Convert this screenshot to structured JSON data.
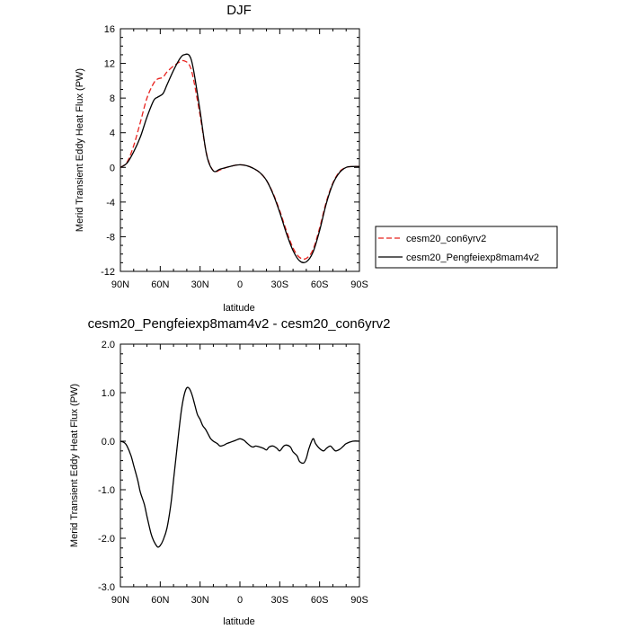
{
  "chart_data": [
    {
      "type": "line",
      "title": "DJF",
      "xlabel": "latitude",
      "ylabel": "Merid Transient Eddy Heat Flux (PW)",
      "xlim": [
        90,
        -90
      ],
      "ylim": [
        -12,
        16
      ],
      "xticks": [
        90,
        60,
        30,
        0,
        -30,
        -60,
        -90
      ],
      "xtick_labels": [
        "90N",
        "60N",
        "30N",
        "0",
        "30S",
        "60S",
        "90S"
      ],
      "yticks": [
        -12,
        -8,
        -4,
        0,
        4,
        8,
        12,
        16
      ],
      "ytick_labels": [
        "-12",
        "-8",
        "-4",
        "0",
        "4",
        "8",
        "12",
        "16"
      ],
      "legend": "right",
      "grid": false,
      "series": [
        {
          "name": "cesm20_con6yrv2",
          "color": "#e8231f",
          "dash": "dashed",
          "x": [
            90,
            85,
            80,
            75,
            70,
            65,
            62,
            58,
            55,
            50,
            45,
            42,
            38,
            35,
            30,
            25,
            20,
            15,
            10,
            5,
            0,
            -5,
            -10,
            -15,
            -20,
            -25,
            -30,
            -35,
            -40,
            -45,
            -50,
            -55,
            -60,
            -65,
            -70,
            -75,
            -80,
            -85,
            -90
          ],
          "y": [
            0,
            0.6,
            2.5,
            5.2,
            8.0,
            9.7,
            10.2,
            10.4,
            11.0,
            11.7,
            12.2,
            12.3,
            11.8,
            10.2,
            6.0,
            1.5,
            -0.4,
            -0.3,
            0.0,
            0.2,
            0.3,
            0.2,
            -0.1,
            -0.6,
            -1.5,
            -3.0,
            -5.0,
            -7.3,
            -9.3,
            -10.4,
            -10.5,
            -9.5,
            -7.0,
            -4.0,
            -1.8,
            -0.5,
            0.0,
            0.1,
            0.1
          ]
        },
        {
          "name": "cesm20_Pengfeiexp8mam4v2",
          "color": "#000000",
          "dash": "solid",
          "x": [
            90,
            85,
            80,
            75,
            70,
            65,
            62,
            58,
            55,
            50,
            45,
            42,
            38,
            35,
            30,
            25,
            20,
            15,
            10,
            5,
            0,
            -5,
            -10,
            -15,
            -20,
            -25,
            -30,
            -35,
            -40,
            -45,
            -50,
            -55,
            -60,
            -65,
            -70,
            -75,
            -80,
            -85,
            -90
          ],
          "y": [
            0,
            0.5,
            1.8,
            3.5,
            5.8,
            7.7,
            8.1,
            8.5,
            9.5,
            11.2,
            12.6,
            13.0,
            12.9,
            11.3,
            6.5,
            1.4,
            -0.4,
            -0.2,
            0.0,
            0.2,
            0.3,
            0.2,
            -0.1,
            -0.6,
            -1.5,
            -3.1,
            -5.2,
            -7.6,
            -9.6,
            -10.8,
            -10.9,
            -9.8,
            -7.3,
            -4.2,
            -1.9,
            -0.6,
            0.0,
            0.1,
            0.1
          ]
        }
      ]
    },
    {
      "type": "line",
      "title": "cesm20_Pengfeiexp8mam4v2 - cesm20_con6yrv2",
      "xlabel": "latitude",
      "ylabel": "Merid Transient Eddy Heat Flux (PW)",
      "xlim": [
        90,
        -90
      ],
      "ylim": [
        -3.0,
        2.0
      ],
      "xticks": [
        90,
        60,
        30,
        0,
        -30,
        -60,
        -90
      ],
      "xtick_labels": [
        "90N",
        "60N",
        "30N",
        "0",
        "30S",
        "60S",
        "90S"
      ],
      "yticks": [
        -3.0,
        -2.0,
        -1.0,
        0.0,
        1.0,
        2.0
      ],
      "ytick_labels": [
        "-3.0",
        "-2.0",
        "-1.0",
        "0.0",
        "1.0",
        "2.0"
      ],
      "grid": false,
      "series": [
        {
          "color": "#000000",
          "dash": "solid",
          "x": [
            90,
            87,
            85,
            82,
            80,
            77,
            75,
            72,
            70,
            67,
            65,
            62,
            60,
            58,
            55,
            52,
            50,
            48,
            46,
            44,
            42,
            40,
            38,
            36,
            34,
            32,
            30,
            28,
            26,
            24,
            22,
            20,
            17,
            15,
            12,
            10,
            8,
            5,
            3,
            0,
            -3,
            -5,
            -8,
            -10,
            -12,
            -15,
            -18,
            -20,
            -22,
            -25,
            -28,
            -30,
            -33,
            -35,
            -38,
            -40,
            -43,
            -45,
            -48,
            -50,
            -52,
            -55,
            -57,
            -60,
            -63,
            -65,
            -68,
            -70,
            -72,
            -75,
            -78,
            -80,
            -85,
            -90
          ],
          "y": [
            0,
            -0.03,
            -0.1,
            -0.3,
            -0.5,
            -0.8,
            -1.05,
            -1.3,
            -1.55,
            -1.9,
            -2.05,
            -2.18,
            -2.15,
            -2.05,
            -1.8,
            -1.3,
            -0.8,
            -0.3,
            0.2,
            0.65,
            0.95,
            1.1,
            1.08,
            0.95,
            0.75,
            0.55,
            0.45,
            0.32,
            0.25,
            0.15,
            0.05,
            0.0,
            -0.05,
            -0.1,
            -0.08,
            -0.05,
            -0.03,
            0.0,
            0.02,
            0.05,
            0.02,
            -0.03,
            -0.1,
            -0.12,
            -0.1,
            -0.12,
            -0.15,
            -0.18,
            -0.12,
            -0.1,
            -0.15,
            -0.2,
            -0.1,
            -0.08,
            -0.12,
            -0.22,
            -0.3,
            -0.42,
            -0.45,
            -0.35,
            -0.15,
            0.05,
            -0.05,
            -0.15,
            -0.2,
            -0.15,
            -0.1,
            -0.15,
            -0.2,
            -0.17,
            -0.1,
            -0.05,
            0,
            0
          ]
        }
      ]
    }
  ]
}
